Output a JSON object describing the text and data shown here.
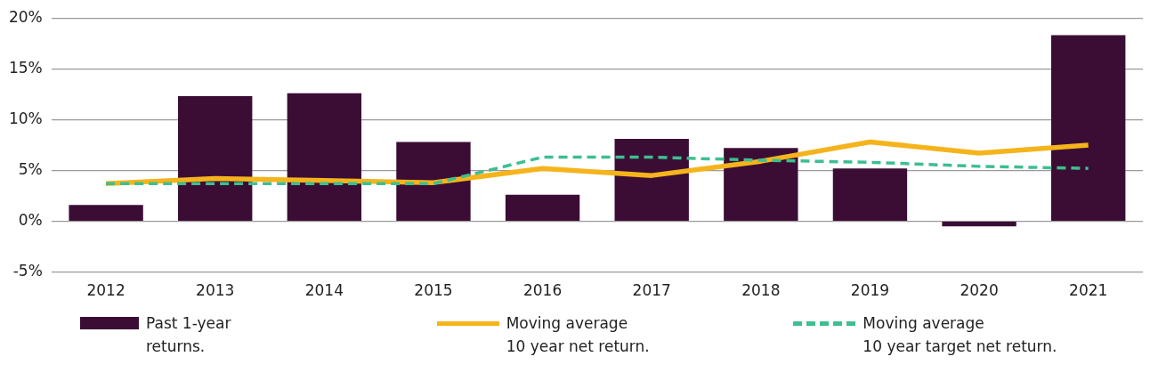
{
  "chart_data": {
    "type": "bar",
    "categories": [
      "2012",
      "2013",
      "2014",
      "2015",
      "2016",
      "2017",
      "2018",
      "2019",
      "2020",
      "2021"
    ],
    "series": [
      {
        "name": "Past 1-year\nreturns.",
        "color": "#3b0d35",
        "values": [
          1.6,
          12.3,
          12.6,
          7.8,
          2.6,
          8.1,
          7.2,
          5.2,
          -0.5,
          18.3
        ]
      },
      {
        "name": "Moving average\n10 year net return.",
        "type": "line",
        "color": "#f5b41c",
        "line_style": "solid",
        "values": [
          3.7,
          4.2,
          4.0,
          3.8,
          5.2,
          4.5,
          5.9,
          7.8,
          6.7,
          7.5
        ]
      },
      {
        "name": "Moving average\n10 year target net return.",
        "type": "line",
        "color": "#3dbf8f",
        "line_style": "dashed",
        "values": [
          3.7,
          3.7,
          3.7,
          3.7,
          6.3,
          6.3,
          6.0,
          5.8,
          5.4,
          5.2
        ]
      }
    ],
    "ylim": [
      -5,
      20
    ],
    "yticks": [
      {
        "value": -5,
        "label": "-5%"
      },
      {
        "value": 0,
        "label": "0%"
      },
      {
        "value": 5,
        "label": "5%"
      },
      {
        "value": 10,
        "label": "10%"
      },
      {
        "value": 15,
        "label": "15%"
      },
      {
        "value": 20,
        "label": "20%"
      }
    ],
    "grid": "y",
    "legend": "bottom",
    "marker": "none"
  }
}
